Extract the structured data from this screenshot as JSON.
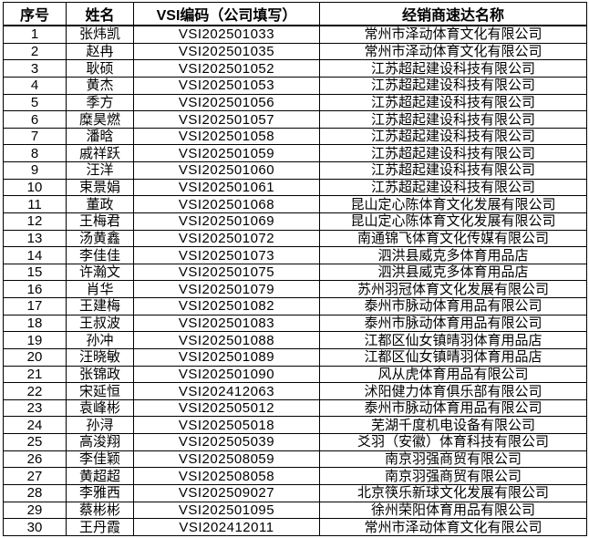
{
  "colors": {
    "border": "#000000",
    "background": "#ffffff",
    "text": "#000000"
  },
  "table": {
    "headers": [
      "序号",
      "姓名",
      "VSI编码（公司填写）",
      "经销商速达名称"
    ],
    "rows": [
      [
        "1",
        "张炜凯",
        "VSI202501033",
        "常州市泽动体育文化有限公司"
      ],
      [
        "2",
        "赵冉",
        "VSI202501035",
        "常州市泽动体育文化有限公司"
      ],
      [
        "3",
        "耿硕",
        "VSI202501052",
        "江苏超起建设科技有限公司"
      ],
      [
        "4",
        "黄杰",
        "VSI202501053",
        "江苏超起建设科技有限公司"
      ],
      [
        "5",
        "季方",
        "VSI202501056",
        "江苏超起建设科技有限公司"
      ],
      [
        "6",
        "糜昊燃",
        "VSI202501057",
        "江苏超起建设科技有限公司"
      ],
      [
        "7",
        "潘晗",
        "VSI202501058",
        "江苏超起建设科技有限公司"
      ],
      [
        "8",
        "戚祥跃",
        "VSI202501059",
        "江苏超起建设科技有限公司"
      ],
      [
        "9",
        "汪洋",
        "VSI202501060",
        "江苏超起建设科技有限公司"
      ],
      [
        "10",
        "束景娟",
        "VSI202501061",
        "江苏超起建设科技有限公司"
      ],
      [
        "11",
        "董政",
        "VSI202501068",
        "昆山定心陈体育文化发展有限公司"
      ],
      [
        "12",
        "王梅君",
        "VSI202501069",
        "昆山定心陈体育文化发展有限公司"
      ],
      [
        "13",
        "汤黄鑫",
        "VSI202501072",
        "南通锦飞体育文化传媒有限公司"
      ],
      [
        "14",
        "李佳佳",
        "VSI202501073",
        "泗洪县威克多体育用品店"
      ],
      [
        "15",
        "许瀚文",
        "VSI202501075",
        "泗洪县威克多体育用品店"
      ],
      [
        "16",
        "肖华",
        "VSI202501079",
        "苏州羽冠体育文化发展有限公司"
      ],
      [
        "17",
        "王建梅",
        "VSI202501082",
        "泰州市脉动体育用品有限公司"
      ],
      [
        "18",
        "王叔波",
        "VSI202501083",
        "泰州市脉动体育用品有限公司"
      ],
      [
        "19",
        "孙冲",
        "VSI202501088",
        "江都区仙女镇晴羽体育用品店"
      ],
      [
        "20",
        "汪晓敏",
        "VSI202501089",
        "江都区仙女镇晴羽体育用品店"
      ],
      [
        "21",
        "张锦政",
        "VSI202501090",
        "风从虎体育用品有限公司"
      ],
      [
        "22",
        "宋延恒",
        "VSI202412063",
        "沭阳健力体育俱乐部有限公司"
      ],
      [
        "23",
        "袁峰彬",
        "VSI202505012",
        "泰州市脉动体育用品有限公司"
      ],
      [
        "24",
        "孙浔",
        "VSI202505018",
        "芜湖千度机电设备有限公司"
      ],
      [
        "25",
        "高浚翔",
        "VSI202505039",
        "爻羽（安徽）体育科技有限公司"
      ],
      [
        "26",
        "李佳颖",
        "VSI202508059",
        "南京羽强商贸有限公司"
      ],
      [
        "27",
        "黄超超",
        "VSI202508058",
        "南京羽强商贸有限公司"
      ],
      [
        "28",
        "李雅西",
        "VSI202509027",
        "北京筷乐新球文化发展有限公司"
      ],
      [
        "29",
        "蔡彬彬",
        "VSI202501095",
        "徐州荣阳体育用品有限公司"
      ],
      [
        "30",
        "王丹霞",
        "VSI202412011",
        "常州市泽动体育文化有限公司"
      ]
    ]
  }
}
